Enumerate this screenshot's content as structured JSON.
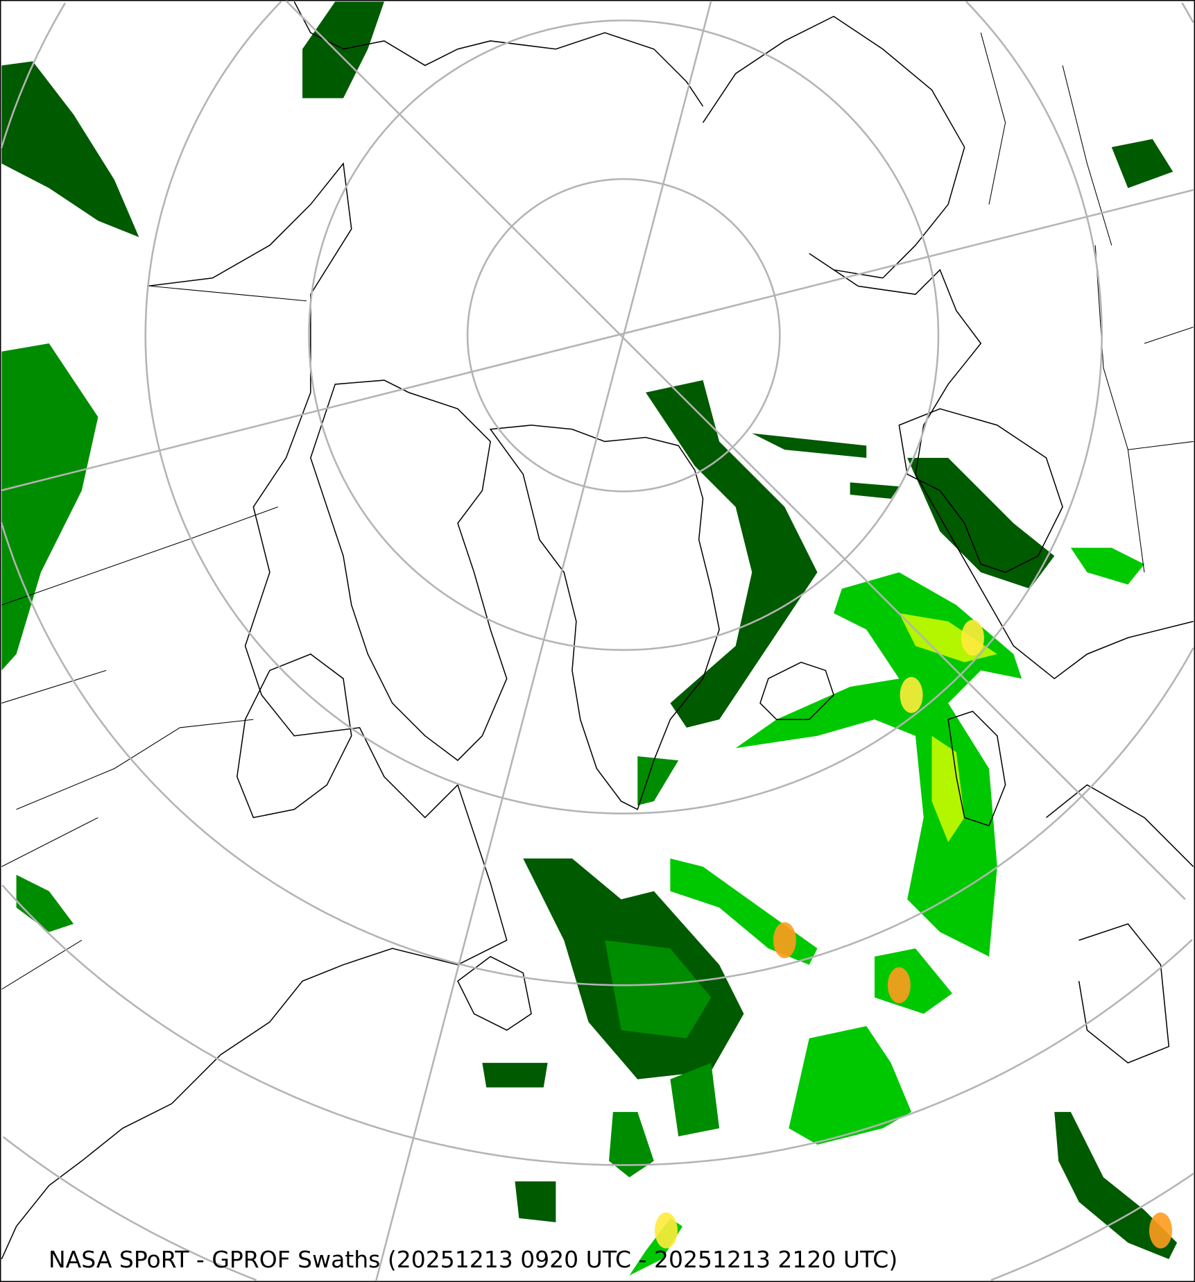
{
  "map": {
    "caption": "NASA SPoRT - GPROF Swaths (20251213 0920 UTC - 20251213 2120 UTC)",
    "projection": "north-polar-stereographic",
    "graticule_color": "#b4b4b4",
    "coastline_color": "#000000",
    "precip_colors": [
      "#005a00",
      "#008c00",
      "#00c800",
      "#46e61e",
      "#b4f500",
      "#ffeb3c",
      "#ff9b1e",
      "#e61e1e"
    ]
  }
}
